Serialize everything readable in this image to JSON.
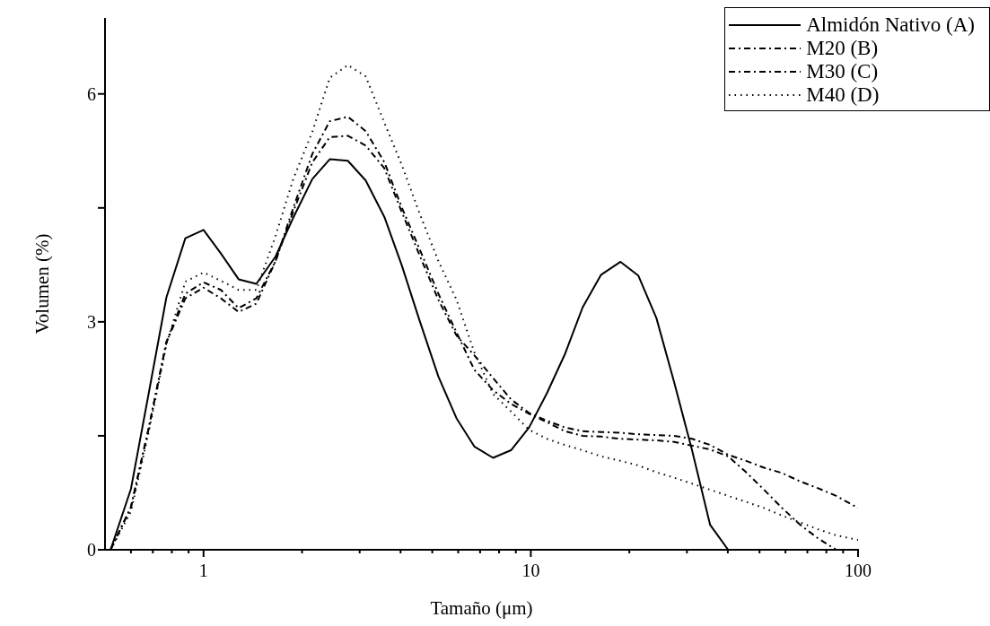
{
  "chart_data": {
    "type": "line",
    "xlabel": "Tamaño (μm)",
    "ylabel": "Volumen (%)",
    "log": "x",
    "grid": false,
    "legend": "top right",
    "marker": "none",
    "x": [
      0.52,
      0.6,
      0.68,
      0.77,
      0.88,
      1,
      1.13,
      1.28,
      1.45,
      1.66,
      1.88,
      2.15,
      2.43,
      2.76,
      3.13,
      3.57,
      4.03,
      4.57,
      5.22,
      5.93,
      6.72,
      7.67,
      8.7,
      9.88,
      11.2,
      12.7,
      14.4,
      16.4,
      18.8,
      21.3,
      24.2,
      27.4,
      31.1,
      35.3,
      40.1,
      45.5,
      51.6,
      58.6,
      66.5,
      75.5,
      85.7,
      100
    ],
    "xlim": [
      0.5,
      100
    ],
    "xticks": [
      {
        "value": 0.6,
        "label": null
      },
      {
        "value": 0.7,
        "label": null
      },
      {
        "value": 0.8,
        "label": null
      },
      {
        "value": 0.9,
        "label": null
      },
      1,
      {
        "value": 2,
        "label": null
      },
      {
        "value": 3,
        "label": null
      },
      {
        "value": 4,
        "label": null
      },
      {
        "value": 5,
        "label": null
      },
      {
        "value": 6,
        "label": null
      },
      {
        "value": 7,
        "label": null
      },
      {
        "value": 8,
        "label": null
      },
      {
        "value": 9,
        "label": null
      },
      10,
      {
        "value": 20,
        "label": null
      },
      {
        "value": 30,
        "label": null
      },
      {
        "value": 40,
        "label": null
      },
      {
        "value": 50,
        "label": null
      },
      {
        "value": 60,
        "label": null
      },
      {
        "value": 70,
        "label": null
      },
      {
        "value": 80,
        "label": null
      },
      {
        "value": 90,
        "label": null
      },
      100
    ],
    "ylim": [
      0,
      7
    ],
    "yticks": [
      0,
      {
        "value": 1.5,
        "label": null
      },
      3,
      {
        "value": 4.5,
        "label": null
      },
      6
    ],
    "series": [
      {
        "name": "Almidón Nativo (A)",
        "color": "#000000",
        "line_style": "solid",
        "values": [
          0,
          0.8,
          2.06,
          3.32,
          4.1,
          4.21,
          3.9,
          3.56,
          3.5,
          3.86,
          4.37,
          4.88,
          5.14,
          5.12,
          4.86,
          4.38,
          3.75,
          3.02,
          2.28,
          1.73,
          1.36,
          1.21,
          1.31,
          1.61,
          2.06,
          2.57,
          3.19,
          3.62,
          3.79,
          3.61,
          3.05,
          2.21,
          1.31,
          0.33,
          0,
          null,
          null,
          null,
          null,
          null,
          null,
          null
        ]
      },
      {
        "name": "M20 (B)",
        "color": "#000000",
        "line_style": "dashed",
        "values": [
          0,
          0.56,
          1.6,
          2.73,
          3.37,
          3.52,
          3.42,
          3.18,
          3.31,
          3.8,
          4.45,
          5.1,
          5.43,
          5.45,
          5.32,
          5.02,
          4.45,
          3.88,
          3.29,
          2.82,
          2.56,
          2.26,
          1.98,
          1.8,
          1.7,
          1.61,
          1.56,
          1.55,
          1.54,
          1.52,
          1.51,
          1.5,
          1.46,
          1.38,
          1.25,
          1.17,
          1.08,
          1.01,
          0.9,
          0.81,
          0.71,
          0.55
        ]
      },
      {
        "name": "M30 (C)",
        "color": "#000000",
        "line_style": "dashed",
        "values": [
          0,
          0.56,
          1.6,
          2.73,
          3.31,
          3.45,
          3.31,
          3.13,
          3.24,
          3.8,
          4.5,
          5.21,
          5.64,
          5.7,
          5.51,
          5.1,
          4.51,
          3.96,
          3.37,
          2.86,
          2.37,
          2.1,
          1.92,
          1.79,
          1.68,
          1.56,
          1.5,
          1.49,
          1.46,
          1.45,
          1.44,
          1.42,
          1.37,
          1.32,
          1.23,
          1.02,
          0.79,
          0.55,
          0.33,
          0.15,
          0,
          null
        ]
      },
      {
        "name": "M40 (D)",
        "color": "#000000",
        "line_style": "dotted",
        "values": [
          0,
          0.5,
          1.55,
          2.7,
          3.53,
          3.65,
          3.54,
          3.42,
          3.42,
          4.13,
          4.88,
          5.5,
          6.21,
          6.38,
          6.23,
          5.62,
          5.07,
          4.43,
          3.8,
          3.29,
          2.6,
          2.05,
          1.82,
          1.58,
          1.46,
          1.38,
          1.31,
          1.23,
          1.17,
          1.11,
          1.02,
          0.95,
          0.87,
          0.79,
          0.71,
          0.63,
          0.55,
          0.45,
          0.36,
          0.27,
          0.19,
          0.13
        ]
      }
    ]
  }
}
